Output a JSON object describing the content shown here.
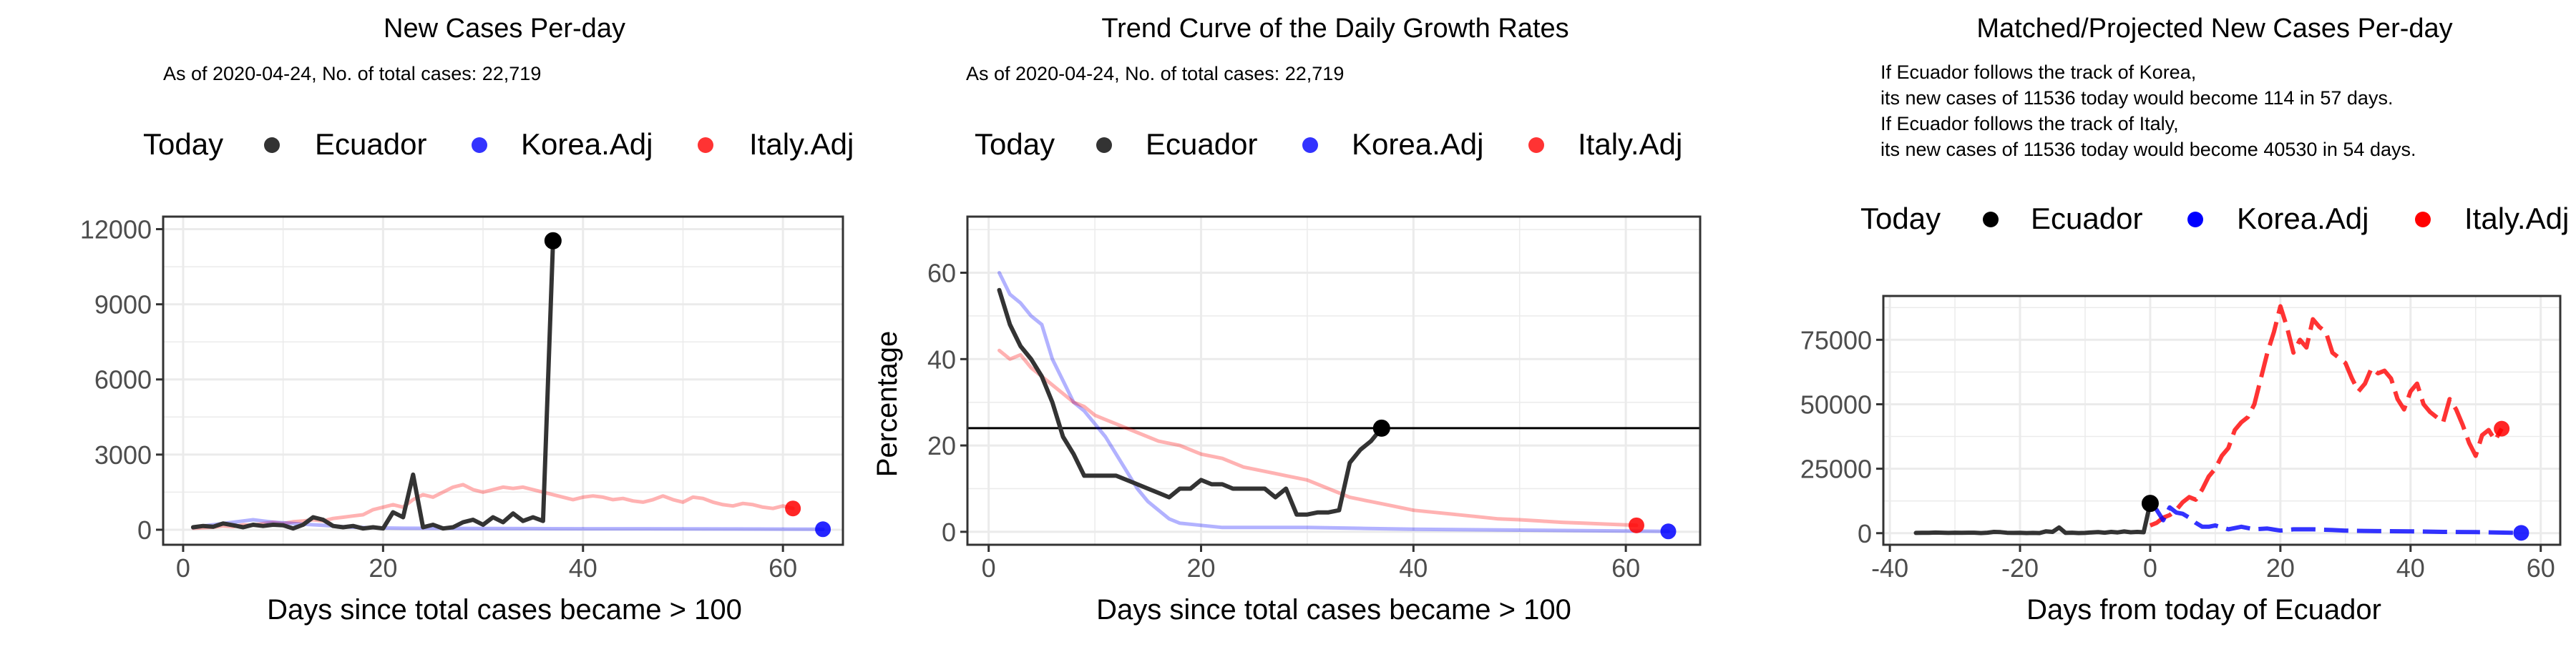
{
  "colors": {
    "ecuador": "#333333",
    "today": "#000000",
    "korea": "#0000FF",
    "italy": "#FF0000",
    "grid": "#EBEBEB",
    "panel_border": "#333333",
    "ref_line": "#000000"
  },
  "legend": {
    "title": "Today",
    "entries": [
      "Ecuador",
      "Korea.Adj",
      "Italy.Adj"
    ]
  },
  "chart_data": [
    {
      "type": "line",
      "title": "New Cases Per-day",
      "subtitle_lines": [
        "As of 2020-04-24, No. of total cases: 22,719"
      ],
      "xlabel": "Days since total cases became > 100",
      "ylabel": "",
      "xlim": [
        -2,
        66
      ],
      "ylim": [
        -600,
        12500
      ],
      "xticks": [
        0,
        20,
        40,
        60
      ],
      "yticks": [
        0,
        3000,
        6000,
        9000,
        12000
      ],
      "xtick_labels": [
        "0",
        "20",
        "40",
        "60"
      ],
      "ytick_labels": [
        "0",
        "3000",
        "6000",
        "9000",
        "12000"
      ],
      "grid": true,
      "legend_position": "top",
      "series": [
        {
          "name": "Italy.Adj",
          "style": "faded",
          "x": [
            1,
            2,
            3,
            4,
            5,
            6,
            7,
            8,
            9,
            10,
            11,
            12,
            13,
            14,
            15,
            16,
            17,
            18,
            19,
            20,
            21,
            22,
            23,
            24,
            25,
            26,
            27,
            28,
            29,
            30,
            31,
            32,
            33,
            34,
            35,
            36,
            37,
            38,
            39,
            40,
            41,
            42,
            43,
            44,
            45,
            46,
            47,
            48,
            49,
            50,
            51,
            52,
            53,
            54,
            55,
            56,
            57,
            58,
            59,
            60,
            61
          ],
          "y": [
            60,
            80,
            100,
            150,
            120,
            200,
            180,
            250,
            300,
            250,
            320,
            350,
            400,
            350,
            450,
            500,
            550,
            600,
            800,
            900,
            1000,
            900,
            1200,
            1400,
            1300,
            1500,
            1700,
            1800,
            1600,
            1500,
            1600,
            1700,
            1650,
            1700,
            1600,
            1500,
            1400,
            1300,
            1200,
            1300,
            1350,
            1300,
            1200,
            1250,
            1150,
            1100,
            1200,
            1350,
            1200,
            1100,
            1300,
            1250,
            1100,
            1000,
            950,
            1050,
            1000,
            900,
            850,
            950,
            850
          ]
        },
        {
          "name": "Korea.Adj",
          "style": "faded",
          "x": [
            1,
            2,
            3,
            4,
            5,
            6,
            7,
            8,
            9,
            10,
            11,
            12,
            13,
            14,
            15,
            16,
            17,
            18,
            19,
            20,
            22,
            25,
            30,
            35,
            40,
            45,
            50,
            55,
            60,
            64
          ],
          "y": [
            80,
            150,
            200,
            250,
            300,
            350,
            400,
            350,
            300,
            280,
            250,
            220,
            200,
            180,
            150,
            120,
            100,
            90,
            80,
            70,
            60,
            55,
            50,
            45,
            40,
            40,
            35,
            30,
            25,
            20
          ]
        },
        {
          "name": "Ecuador",
          "style": "solid",
          "x": [
            1,
            2,
            3,
            4,
            5,
            6,
            7,
            8,
            9,
            10,
            11,
            12,
            13,
            14,
            15,
            16,
            17,
            18,
            19,
            20,
            21,
            22,
            23,
            24,
            25,
            26,
            27,
            28,
            29,
            30,
            31,
            32,
            33,
            34,
            35,
            36,
            37
          ],
          "y": [
            100,
            150,
            120,
            250,
            180,
            100,
            200,
            150,
            200,
            180,
            50,
            200,
            500,
            400,
            150,
            100,
            150,
            50,
            100,
            50,
            700,
            500,
            2200,
            100,
            200,
            50,
            100,
            300,
            400,
            200,
            500,
            300,
            650,
            350,
            500,
            350,
            11536
          ]
        }
      ],
      "today_points": [
        {
          "series": "Ecuador",
          "x": 37,
          "y": 11536
        },
        {
          "series": "Korea.Adj",
          "x": 64,
          "y": 20
        },
        {
          "series": "Italy.Adj",
          "x": 61,
          "y": 850
        }
      ]
    },
    {
      "type": "line",
      "title": "Trend Curve of the Daily Growth Rates",
      "subtitle_lines": [
        "As of 2020-04-24, No. of total cases: 22,719"
      ],
      "xlabel": "Days since total cases became > 100",
      "ylabel": "Percentage",
      "xlim": [
        -2,
        67
      ],
      "ylim": [
        -3,
        73
      ],
      "xticks": [
        0,
        20,
        40,
        60
      ],
      "yticks": [
        0,
        20,
        40,
        60
      ],
      "xtick_labels": [
        "0",
        "20",
        "40",
        "60"
      ],
      "ytick_labels": [
        "0",
        "20",
        "40",
        "60"
      ],
      "grid": true,
      "legend_position": "top",
      "hline": 24,
      "series": [
        {
          "name": "Korea.Adj",
          "style": "faded",
          "x": [
            1,
            2,
            3,
            4,
            5,
            6,
            7,
            8,
            9,
            10,
            11,
            12,
            13,
            14,
            15,
            16,
            17,
            18,
            20,
            22,
            25,
            30,
            35,
            40,
            45,
            50,
            55,
            60,
            64
          ],
          "y": [
            60,
            55,
            53,
            50,
            48,
            40,
            35,
            30,
            28,
            25,
            22,
            18,
            14,
            10,
            7,
            5,
            3,
            2,
            1.5,
            1,
            1,
            1,
            0.8,
            0.6,
            0.5,
            0.4,
            0.3,
            0.2,
            0.1
          ]
        },
        {
          "name": "Italy.Adj",
          "style": "faded",
          "x": [
            1,
            2,
            3,
            4,
            5,
            6,
            7,
            8,
            9,
            10,
            11,
            12,
            14,
            16,
            18,
            20,
            22,
            24,
            26,
            28,
            30,
            32,
            34,
            36,
            38,
            40,
            42,
            44,
            46,
            48,
            50,
            52,
            54,
            56,
            58,
            61
          ],
          "y": [
            42,
            40,
            41,
            38,
            36,
            34,
            32,
            30,
            29,
            27,
            26,
            25,
            23,
            21,
            20,
            18,
            17,
            15,
            14,
            13,
            12,
            10,
            8,
            7,
            6,
            5,
            4.5,
            4,
            3.5,
            3,
            2.8,
            2.5,
            2.2,
            2,
            1.8,
            1.5
          ]
        },
        {
          "name": "Ecuador",
          "style": "solid",
          "x": [
            1,
            2,
            3,
            4,
            5,
            6,
            7,
            8,
            9,
            10,
            11,
            12,
            13,
            14,
            15,
            16,
            17,
            18,
            19,
            20,
            21,
            22,
            23,
            24,
            25,
            26,
            27,
            28,
            29,
            30,
            31,
            32,
            33,
            34,
            35,
            36,
            37
          ],
          "y": [
            56,
            48,
            43,
            40,
            36,
            30,
            22,
            18,
            13,
            13,
            13,
            13,
            12,
            11,
            10,
            9,
            8,
            10,
            10,
            12,
            11,
            11,
            10,
            10,
            10,
            10,
            8,
            10,
            4,
            4,
            4.5,
            4.5,
            5,
            16,
            19,
            21,
            24
          ]
        }
      ],
      "today_points": [
        {
          "series": "Ecuador",
          "x": 37,
          "y": 24
        },
        {
          "series": "Korea.Adj",
          "x": 64,
          "y": 0.1
        },
        {
          "series": "Italy.Adj",
          "x": 61,
          "y": 1.5
        }
      ]
    },
    {
      "type": "line",
      "title": "Matched/Projected New Cases Per-day",
      "subtitle_lines": [
        "If Ecuador follows the track of Korea,",
        "its new cases of 11536 today would become 114 in 57 days.",
        "If Ecuador follows the track of Italy,",
        "its new cases of 11536 today would become 40530 in 54 days."
      ],
      "xlabel": "Days from today of Ecuador",
      "ylabel": "",
      "xlim": [
        -41,
        63
      ],
      "ylim": [
        -4500,
        92000
      ],
      "xticks": [
        -40,
        -20,
        0,
        20,
        40,
        60
      ],
      "yticks": [
        0,
        25000,
        50000,
        75000
      ],
      "xtick_labels": [
        "-40",
        "-20",
        "0",
        "20",
        "40",
        "60"
      ],
      "ytick_labels": [
        "0",
        "25000",
        "50000",
        "75000"
      ],
      "grid": true,
      "legend_position": "top",
      "series": [
        {
          "name": "Italy.Adj",
          "style": "dashed",
          "x": [
            0,
            1,
            2,
            3,
            4,
            5,
            6,
            7,
            8,
            9,
            10,
            11,
            12,
            13,
            14,
            15,
            16,
            17,
            18,
            19,
            20,
            21,
            22,
            23,
            24,
            25,
            26,
            27,
            28,
            29,
            30,
            31,
            32,
            33,
            34,
            35,
            36,
            37,
            38,
            39,
            40,
            41,
            42,
            43,
            44,
            45,
            46,
            47,
            48,
            49,
            50,
            51,
            52,
            53,
            54
          ],
          "y": [
            3000,
            4000,
            6000,
            7000,
            9000,
            12000,
            14000,
            13000,
            17000,
            22000,
            25000,
            30000,
            33000,
            40000,
            43000,
            45000,
            50000,
            60000,
            70000,
            78000,
            88000,
            80000,
            70000,
            75000,
            72000,
            83000,
            80000,
            78000,
            70000,
            68000,
            66000,
            60000,
            55000,
            58000,
            64000,
            62000,
            63000,
            60000,
            52000,
            48000,
            55000,
            58000,
            50000,
            47000,
            45000,
            43000,
            52000,
            48000,
            42000,
            35000,
            30000,
            38000,
            40000,
            36000,
            40530
          ]
        },
        {
          "name": "Korea.Adj",
          "style": "dashed",
          "x": [
            0,
            1,
            2,
            3,
            4,
            5,
            6,
            7,
            8,
            9,
            10,
            12,
            14,
            16,
            18,
            20,
            22,
            25,
            28,
            30,
            35,
            40,
            45,
            50,
            55,
            57
          ],
          "y": [
            11536,
            9000,
            5000,
            10000,
            8000,
            7500,
            6000,
            4000,
            2500,
            2500,
            3000,
            1500,
            2500,
            1500,
            1800,
            1000,
            1500,
            1500,
            1200,
            1000,
            800,
            700,
            500,
            400,
            200,
            114
          ]
        },
        {
          "name": "Ecuador",
          "style": "solid",
          "x": [
            -36,
            -35,
            -34,
            -33,
            -32,
            -31,
            -30,
            -29,
            -28,
            -27,
            -26,
            -25,
            -24,
            -23,
            -22,
            -21,
            -20,
            -19,
            -18,
            -17,
            -16,
            -15,
            -14,
            -13,
            -12,
            -11,
            -10,
            -9,
            -8,
            -7,
            -6,
            -5,
            -4,
            -3,
            -2,
            -1,
            0
          ],
          "y": [
            100,
            150,
            120,
            250,
            180,
            100,
            200,
            150,
            200,
            180,
            50,
            200,
            500,
            400,
            150,
            100,
            150,
            50,
            100,
            50,
            700,
            500,
            2200,
            100,
            200,
            50,
            100,
            300,
            400,
            200,
            500,
            300,
            650,
            350,
            500,
            350,
            11536
          ]
        }
      ],
      "today_points": [
        {
          "series": "Ecuador",
          "x": 0,
          "y": 11536
        },
        {
          "series": "Korea.Adj",
          "x": 57,
          "y": 114
        },
        {
          "series": "Italy.Adj",
          "x": 54,
          "y": 40530
        }
      ]
    }
  ]
}
